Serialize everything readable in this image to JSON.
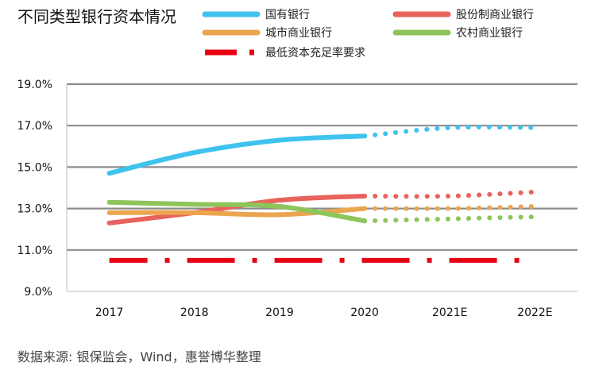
{
  "source": "数据来源: 银保监会，Wind，惠誉博华整理",
  "chart_data": {
    "type": "line",
    "title": "不同类型银行资本情况",
    "xlabel": "",
    "ylabel": "",
    "categories": [
      "2017",
      "2018",
      "2019",
      "2020",
      "2021E",
      "2022E"
    ],
    "actual_through": "2020",
    "ylim": [
      9.0,
      19.0
    ],
    "yticks": [
      "9.0%",
      "11.0%",
      "13.0%",
      "15.0%",
      "17.0%",
      "19.0%"
    ],
    "grid": true,
    "legend_position": "top",
    "series": [
      {
        "name": "国有银行",
        "color": "#3fc3ee",
        "values": [
          14.7,
          15.7,
          16.3,
          16.5,
          16.9,
          16.9
        ]
      },
      {
        "name": "股份制商业银行",
        "color": "#e8635c",
        "values": [
          12.3,
          12.8,
          13.4,
          13.6,
          13.6,
          13.8
        ]
      },
      {
        "name": "城市商业银行",
        "color": "#eba54e",
        "values": [
          12.8,
          12.8,
          12.7,
          13.0,
          13.0,
          13.1
        ]
      },
      {
        "name": "农村商业银行",
        "color": "#8dc55a",
        "values": [
          13.3,
          13.2,
          13.1,
          12.4,
          12.5,
          12.6
        ]
      },
      {
        "name": "最低资本充足率要求",
        "color": "#e60012",
        "style": "dash-dot",
        "values": [
          10.5,
          10.5,
          10.5,
          10.5,
          10.5,
          10.5
        ]
      }
    ]
  }
}
